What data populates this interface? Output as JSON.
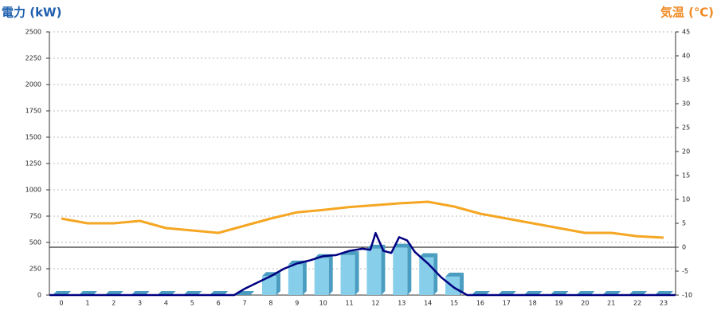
{
  "chart_data": {
    "type": "bar",
    "y_label": "電力 (kW)",
    "y2_label": "気温 (℃)",
    "categories": [
      "0",
      "1",
      "2",
      "3",
      "4",
      "5",
      "6",
      "7",
      "8",
      "9",
      "10",
      "11",
      "12",
      "13",
      "14",
      "15",
      "16",
      "17",
      "18",
      "19",
      "20",
      "21",
      "22",
      "23"
    ],
    "ylim": [
      0,
      2500
    ],
    "yticks": [
      0,
      250,
      500,
      750,
      1000,
      1250,
      1500,
      1750,
      2000,
      2250,
      2500
    ],
    "y2lim": [
      -10,
      45
    ],
    "y2ticks": [
      -10,
      -5,
      0,
      5,
      10,
      15,
      20,
      25,
      30,
      35,
      40,
      45
    ],
    "grid": true,
    "series": [
      {
        "type": "bar",
        "color": "#87ceeb",
        "side_color": "#4a9cc0",
        "values": [
          0,
          0,
          0,
          0,
          0,
          0,
          0,
          0,
          180,
          290,
          350,
          380,
          440,
          450,
          360,
          175,
          0,
          0,
          0,
          0,
          0,
          0,
          0,
          0
        ]
      },
      {
        "type": "line",
        "color": "#000080",
        "x": [
          -0.45,
          6.6,
          7,
          7.5,
          8,
          8.5,
          9,
          9.5,
          10,
          10.5,
          11,
          11.5,
          11.8,
          12,
          12.3,
          12.6,
          12.9,
          13.2,
          13.5,
          14,
          14.5,
          15,
          15.5,
          23.45
        ],
        "values": [
          0,
          0,
          60,
          120,
          180,
          250,
          300,
          330,
          370,
          380,
          420,
          440,
          430,
          590,
          420,
          400,
          550,
          520,
          410,
          300,
          170,
          70,
          0,
          0
        ]
      },
      {
        "type": "line",
        "axis": "y2",
        "color": "#f5a623",
        "values": [
          6,
          5,
          5,
          5.5,
          4,
          3.5,
          3,
          4.5,
          6,
          7.3,
          7.8,
          8.4,
          8.8,
          9.2,
          9.5,
          8.5,
          7,
          6,
          5,
          4,
          3,
          3,
          2.3,
          2
        ]
      }
    ]
  }
}
